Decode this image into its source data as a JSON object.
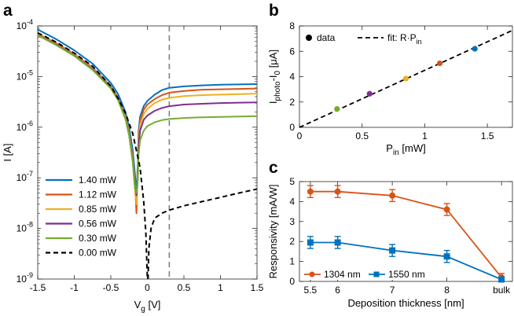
{
  "panels": {
    "a": {
      "letter": "a"
    },
    "b": {
      "letter": "b"
    },
    "c": {
      "letter": "c"
    }
  },
  "chart_data": [
    {
      "id": "a",
      "type": "line",
      "xlabel": "V",
      "xlabel_sub": "g",
      "xlabel_unit": " [V]",
      "ylabel": "I [A]",
      "x_scale": "linear",
      "y_scale": "log",
      "xlim": [
        -1.5,
        1.5
      ],
      "ylim": [
        1e-09,
        0.0001
      ],
      "x_ticks": [
        -1.5,
        -1,
        -0.5,
        0,
        0.5,
        1,
        1.5
      ],
      "x_tick_labels": [
        "-1.5",
        "-1",
        "-0.5",
        "0",
        "0.5",
        "1",
        "1.5"
      ],
      "y_ticks": [
        1e-09,
        1e-08,
        1e-07,
        1e-06,
        1e-05,
        0.0001
      ],
      "y_tick_labels": [
        {
          "base": "10",
          "exp": "-9"
        },
        {
          "base": "10",
          "exp": "-8"
        },
        {
          "base": "10",
          "exp": "-7"
        },
        {
          "base": "10",
          "exp": "-6"
        },
        {
          "base": "10",
          "exp": "-5"
        },
        {
          "base": "10",
          "exp": "-4"
        }
      ],
      "vline_x": 0.3,
      "legend_position": "lower-left",
      "series": [
        {
          "name": "1.40 mW",
          "color": "#0072BD",
          "dash": false,
          "x": [
            -1.5,
            -1.25,
            -1.0,
            -0.75,
            -0.5,
            -0.4,
            -0.3,
            -0.25,
            -0.2,
            -0.17,
            -0.15,
            -0.13,
            -0.12,
            -0.1,
            -0.05,
            0.0,
            0.1,
            0.2,
            0.3,
            0.5,
            0.75,
            1.0,
            1.25,
            1.5
          ],
          "y": [
            8.5e-05,
            5.5e-05,
            3.3e-05,
            1.8e-05,
            7.5e-06,
            4.5e-06,
            2e-06,
            1e-06,
            3.5e-07,
            1.2e-07,
            4.5e-08,
            2e-07,
            8e-07,
            1.6e-06,
            2.6e-06,
            3.3e-06,
            4.4e-06,
            5.4e-06,
            6e-06,
            6.4e-06,
            6.7e-06,
            6.9e-06,
            7e-06,
            7.1e-06
          ]
        },
        {
          "name": "1.12 mW",
          "color": "#D95319",
          "dash": false,
          "x": [
            -1.5,
            -1.25,
            -1.0,
            -0.75,
            -0.5,
            -0.4,
            -0.3,
            -0.25,
            -0.2,
            -0.17,
            -0.15,
            -0.13,
            -0.12,
            -0.1,
            -0.05,
            0.0,
            0.1,
            0.2,
            0.3,
            0.5,
            0.75,
            1.0,
            1.25,
            1.5
          ],
          "y": [
            7e-05,
            4.6e-05,
            2.8e-05,
            1.5e-05,
            6.5e-06,
            3.8e-06,
            1.7e-06,
            8e-07,
            2.5e-07,
            8e-08,
            2e-08,
            1.5e-07,
            6e-07,
            1.3e-06,
            2.2e-06,
            2.8e-06,
            3.6e-06,
            4.3e-06,
            4.8e-06,
            5.2e-06,
            5.5e-06,
            5.6e-06,
            5.7e-06,
            5.8e-06
          ]
        },
        {
          "name": "0.85 mW",
          "color": "#EDB120",
          "dash": false,
          "x": [
            -1.5,
            -1.25,
            -1.0,
            -0.75,
            -0.5,
            -0.4,
            -0.3,
            -0.25,
            -0.2,
            -0.17,
            -0.15,
            -0.13,
            -0.12,
            -0.1,
            -0.05,
            0.0,
            0.1,
            0.2,
            0.3,
            0.5,
            0.75,
            1.0,
            1.25,
            1.5
          ],
          "y": [
            6.8e-05,
            4.4e-05,
            2.7e-05,
            1.45e-05,
            6.2e-06,
            3.6e-06,
            1.6e-06,
            7.5e-07,
            2.3e-07,
            7e-08,
            3e-08,
            1.2e-07,
            5e-07,
            1.1e-06,
            1.8e-06,
            2.3e-06,
            3e-06,
            3.5e-06,
            3.8e-06,
            4.1e-06,
            4.3e-06,
            4.4e-06,
            4.5e-06,
            4.6e-06
          ]
        },
        {
          "name": "0.56 mW",
          "color": "#7E2F8E",
          "dash": false,
          "x": [
            -1.5,
            -1.25,
            -1.0,
            -0.75,
            -0.5,
            -0.4,
            -0.3,
            -0.25,
            -0.2,
            -0.17,
            -0.15,
            -0.13,
            -0.12,
            -0.1,
            -0.05,
            0.0,
            0.1,
            0.2,
            0.3,
            0.5,
            0.75,
            1.0,
            1.25,
            1.5
          ],
          "y": [
            6.6e-05,
            4.3e-05,
            2.6e-05,
            1.4e-05,
            6e-06,
            3.5e-06,
            1.5e-06,
            7e-07,
            2.1e-07,
            6.5e-08,
            4.5e-08,
            1e-07,
            4e-07,
            8.5e-07,
            1.4e-06,
            1.7e-06,
            2.1e-06,
            2.4e-06,
            2.6e-06,
            2.8e-06,
            2.9e-06,
            3e-06,
            3.05e-06,
            3.1e-06
          ]
        },
        {
          "name": "0.30 mW",
          "color": "#77AC30",
          "dash": false,
          "x": [
            -1.5,
            -1.25,
            -1.0,
            -0.75,
            -0.5,
            -0.4,
            -0.3,
            -0.25,
            -0.2,
            -0.17,
            -0.15,
            -0.13,
            -0.12,
            -0.1,
            -0.05,
            0.0,
            0.1,
            0.2,
            0.3,
            0.5,
            0.75,
            1.0,
            1.25,
            1.5
          ],
          "y": [
            6.5e-05,
            4.2e-05,
            2.55e-05,
            1.35e-05,
            5.8e-06,
            3.4e-06,
            1.45e-06,
            6.8e-07,
            2e-07,
            6e-08,
            5e-08,
            9e-08,
            2.8e-07,
            5.5e-07,
            8.5e-07,
            1.05e-06,
            1.25e-06,
            1.38e-06,
            1.45e-06,
            1.52e-06,
            1.57e-06,
            1.6e-06,
            1.62e-06,
            1.65e-06
          ]
        },
        {
          "name": "0.00 mW",
          "color": "#000000",
          "dash": true,
          "x": [
            -1.5,
            -1.25,
            -1.0,
            -0.75,
            -0.5,
            -0.4,
            -0.3,
            -0.2,
            -0.1,
            -0.05,
            -0.02,
            0.0,
            0.01,
            0.02,
            0.05,
            0.1,
            0.2,
            0.3,
            0.5,
            0.75,
            1.0,
            1.25,
            1.5
          ],
          "y": [
            7.3e-05,
            4.8e-05,
            2.9e-05,
            1.6e-05,
            6.5e-06,
            3.7e-06,
            1.9e-06,
            7.5e-07,
            1.6e-07,
            3.5e-08,
            8e-09,
            1e-09,
            1e-09,
            4e-09,
            1e-08,
            1.6e-08,
            2e-08,
            2.3e-08,
            2.8e-08,
            3.4e-08,
            4.1e-08,
            5e-08,
            6e-08
          ]
        }
      ]
    },
    {
      "id": "b",
      "type": "scatter",
      "xlabel": "P",
      "xlabel_sub": "in",
      "xlabel_unit": " [mW]",
      "ylabel": "I",
      "ylabel_sub": "photo",
      "ylabel_rest": "-I",
      "ylabel_sub2": "0",
      "ylabel_unit": " [μA]",
      "xlim": [
        0,
        1.7
      ],
      "ylim": [
        0,
        8
      ],
      "x_ticks": [
        0,
        0.5,
        1,
        1.5
      ],
      "x_tick_labels": [
        "0",
        "0.5",
        "1",
        "1.5"
      ],
      "y_ticks": [
        0,
        2,
        4,
        6,
        8
      ],
      "y_tick_labels": [
        "0",
        "2",
        "4",
        "6",
        "8"
      ],
      "legend_position": "top",
      "legend": {
        "data_label": "data",
        "fit_label": "fit: R·P",
        "fit_sub": "in"
      },
      "fit": {
        "slope": 4.5
      },
      "points": [
        {
          "x": 0.3,
          "y": 1.45,
          "color": "#77AC30"
        },
        {
          "x": 0.56,
          "y": 2.65,
          "color": "#7E2F8E"
        },
        {
          "x": 0.85,
          "y": 3.85,
          "color": "#EDB120"
        },
        {
          "x": 1.12,
          "y": 5.05,
          "color": "#D95319"
        },
        {
          "x": 1.4,
          "y": 6.2,
          "color": "#0072BD"
        }
      ]
    },
    {
      "id": "c",
      "type": "line",
      "xlabel": "Deposition thickness [nm]",
      "ylabel": "Responsivity [mA/W]",
      "categories_pos": [
        5.5,
        6,
        7,
        8,
        9
      ],
      "x_tick_labels": [
        "5.5",
        "6",
        "7",
        "8",
        "bulk"
      ],
      "xlim": [
        5.3,
        9.2
      ],
      "ylim": [
        0,
        5
      ],
      "y_ticks": [
        0,
        1,
        2,
        3,
        4,
        5
      ],
      "y_tick_labels": [
        "0",
        "1",
        "2",
        "3",
        "4",
        "5"
      ],
      "legend_position": "bottom-left",
      "series": [
        {
          "name": "1304 nm",
          "color": "#D95319",
          "marker": "circle",
          "x": [
            5.5,
            6,
            7,
            8,
            9
          ],
          "y": [
            4.5,
            4.5,
            4.3,
            3.6,
            0.2
          ],
          "err": [
            0.3,
            0.3,
            0.3,
            0.3,
            0.2
          ]
        },
        {
          "name": "1550 nm",
          "color": "#0072BD",
          "marker": "square",
          "x": [
            5.5,
            6,
            7,
            8,
            9
          ],
          "y": [
            1.95,
            1.95,
            1.55,
            1.25,
            0.1
          ],
          "err": [
            0.3,
            0.3,
            0.3,
            0.3,
            0.1
          ]
        }
      ]
    }
  ]
}
